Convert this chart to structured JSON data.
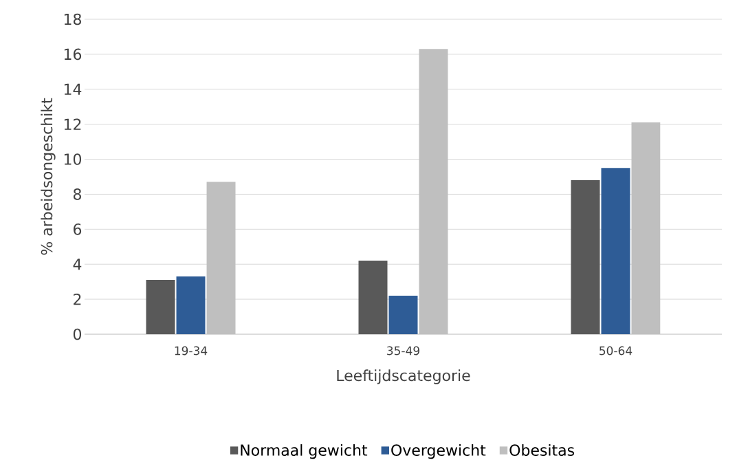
{
  "chart_data": {
    "type": "bar",
    "xlabel": "Leeftijdscategorie",
    "ylabel": "% arbeidsongeschikt",
    "categories": [
      "19-34",
      "35-49",
      "50-64"
    ],
    "series": [
      {
        "name": "Normaal gewicht",
        "color": "#595959",
        "values": [
          3.1,
          4.2,
          8.8
        ]
      },
      {
        "name": "Overgewicht",
        "color": "#2e5c96",
        "values": [
          3.3,
          2.2,
          9.5
        ]
      },
      {
        "name": "Obesitas",
        "color": "#bfbfbf",
        "values": [
          8.7,
          16.3,
          12.1
        ]
      }
    ],
    "ylim": [
      0,
      18
    ],
    "yticks": [
      0,
      2,
      4,
      6,
      8,
      10,
      12,
      14,
      16,
      18
    ],
    "grid": "y",
    "legend": "bottom"
  }
}
